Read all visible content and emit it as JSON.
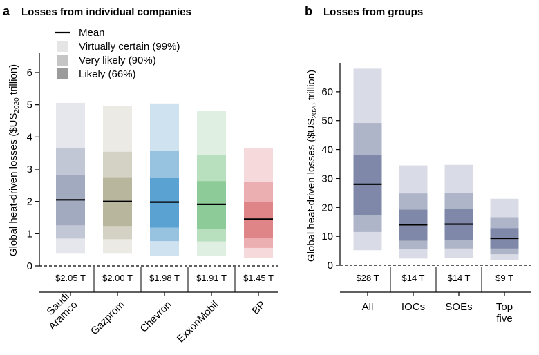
{
  "chart_data": [
    {
      "type": "bar",
      "panel_letter": "a",
      "title": "Losses from individual companies",
      "ylabel_parts": [
        "Global heat-driven losses ($US",
        "2020",
        " trillion)"
      ],
      "ylim": [
        0,
        6.6
      ],
      "yticks": [
        "0",
        "1",
        "2",
        "3",
        "4",
        "5",
        "6"
      ],
      "categories": [
        "Saudi Aramco",
        "Gazprom",
        "Chevron",
        "ExxonMobil",
        "BP"
      ],
      "value_labels": [
        "$2.05 T",
        "$2.00 T",
        "$1.98 T",
        "$1.91 T",
        "$1.45 T"
      ],
      "series": [
        {
          "name": "Mean",
          "values": [
            2.05,
            2.0,
            1.98,
            1.91,
            1.45
          ]
        },
        {
          "name": "Virtually certain (99%)",
          "low": [
            0.38,
            0.38,
            0.32,
            0.32,
            0.25
          ],
          "high": [
            5.06,
            4.97,
            5.04,
            4.8,
            3.65
          ]
        },
        {
          "name": "Very likely (90%)",
          "low": [
            0.85,
            0.83,
            0.77,
            0.76,
            0.56
          ],
          "high": [
            3.65,
            3.54,
            3.56,
            3.43,
            2.6
          ]
        },
        {
          "name": "Likely (66%)",
          "low": [
            1.26,
            1.24,
            1.19,
            1.15,
            0.86
          ],
          "high": [
            2.82,
            2.75,
            2.73,
            2.63,
            1.99
          ]
        }
      ],
      "colors": [
        [
          "#e6e7ed",
          "#c2c7d5",
          "#a2aabf"
        ],
        [
          "#ebeae5",
          "#d4d2c4",
          "#b8b69d"
        ],
        [
          "#cfe2ef",
          "#97c3e1",
          "#5aa2d2"
        ],
        [
          "#dff0e2",
          "#b8dfbe",
          "#8dcc98"
        ],
        [
          "#f6d9db",
          "#ebaeb1",
          "#df8588"
        ]
      ]
    },
    {
      "type": "bar",
      "panel_letter": "b",
      "title": "Losses from groups",
      "ylabel_parts": [
        "Global heat-driven losses ($US",
        "2020",
        " trillion)"
      ],
      "ylim": [
        0,
        70
      ],
      "yticks": [
        "0",
        "10",
        "20",
        "30",
        "40",
        "50",
        "60"
      ],
      "categories": [
        "All",
        "IOCs",
        "SOEs",
        "Top five"
      ],
      "value_labels": [
        "$28 T",
        "$14 T",
        "$14 T",
        "$9 T"
      ],
      "series": [
        {
          "name": "Mean",
          "values": [
            28,
            14,
            14.2,
            9.3
          ]
        },
        {
          "name": "Virtually certain (99%)",
          "low": [
            5.2,
            2.3,
            2.4,
            1.7
          ],
          "high": [
            68,
            34.5,
            34.7,
            23
          ]
        },
        {
          "name": "Very likely (90%)",
          "low": [
            11.5,
            5.6,
            5.8,
            3.8
          ],
          "high": [
            49.2,
            24.8,
            25,
            16.6
          ]
        },
        {
          "name": "Likely (66%)",
          "low": [
            17.3,
            8.5,
            8.6,
            5.8
          ],
          "high": [
            38.2,
            19.2,
            19.4,
            12.8
          ]
        }
      ],
      "colors": [
        [
          "#d9dce6",
          "#aeb5c8",
          "#7f88a8"
        ],
        [
          "#d9dce6",
          "#aeb5c8",
          "#7f88a8"
        ],
        [
          "#d9dce6",
          "#aeb5c8",
          "#7f88a8"
        ],
        [
          "#d9dce6",
          "#aeb5c8",
          "#7f88a8"
        ]
      ]
    }
  ],
  "legend": {
    "items": [
      {
        "label": "Mean",
        "kind": "line",
        "color": "#000000"
      },
      {
        "label": "Virtually certain (99%)",
        "kind": "box",
        "color": "#e5e5e5"
      },
      {
        "label": "Very likely (90%)",
        "kind": "box",
        "color": "#c5c5c5"
      },
      {
        "label": "Likely (66%)",
        "kind": "box",
        "color": "#9b9b9b"
      }
    ]
  }
}
